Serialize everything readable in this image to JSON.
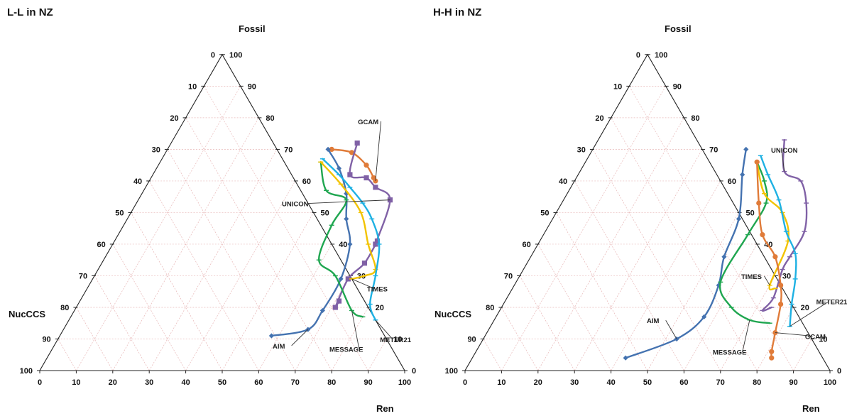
{
  "chart_data": [
    {
      "type": "ternary-line",
      "title": "L-L in NZ",
      "axes": {
        "top": "Fossil",
        "left": "NucCCS",
        "right": "Ren"
      },
      "ticks": [
        0,
        10,
        20,
        30,
        40,
        50,
        60,
        70,
        80,
        90,
        100
      ],
      "grid": true,
      "series": [
        {
          "name": "GCAM",
          "color": "#E07B39",
          "marker": "circle",
          "points": [
            [
              45,
              70,
              70
            ],
            [
              51,
              69,
              69
            ],
            [
              57,
              65,
              65
            ],
            [
              61,
              61,
              61
            ],
            [
              62,
              60,
              60
            ]
          ],
          "label": "GCAM",
          "label_target_index": 4
        },
        {
          "name": "UNICON",
          "color": "#8061A6",
          "marker": "square",
          "points": [
            [
              51,
              72,
              72
            ],
            [
              54,
              62,
              62
            ],
            [
              59,
              61,
              61
            ],
            [
              63,
              58,
              58
            ],
            [
              69,
              54,
              54
            ],
            [
              72,
              40,
              40
            ],
            [
              72,
              41,
              41
            ],
            [
              72,
              34,
              34
            ],
            [
              70,
              29,
              29
            ],
            [
              71,
              20,
              20
            ],
            [
              71,
              22,
              22
            ]
          ],
          "label": "UNICON",
          "label_target_index": 4
        },
        {
          "name": "AIM",
          "color": "#4472B0",
          "marker": "diamond",
          "points": [
            [
              44,
              70,
              70
            ],
            [
              50,
              64,
              64
            ],
            [
              56,
              56,
              56
            ],
            [
              60,
              48,
              48
            ],
            [
              65,
              40,
              40
            ],
            [
              68,
              29,
              29
            ],
            [
              68,
              19,
              19
            ],
            [
              67,
              13,
              13
            ],
            [
              58,
              11,
              11
            ]
          ],
          "label": "AIM",
          "label_target_index": 7
        },
        {
          "name": "MESSAGE",
          "color": "#1FA650",
          "marker": "dash",
          "points": [
            [
              44,
              66,
              66
            ],
            [
              50,
              57,
              57
            ],
            [
              57,
              54,
              54
            ],
            [
              57,
              46,
              46
            ],
            [
              59,
              35,
              35
            ],
            [
              66,
              30,
              30
            ],
            [
              76,
              19,
              19
            ],
            [
              80,
              17,
              17
            ]
          ],
          "label": "MESSAGE",
          "label_target_index": 6
        },
        {
          "name": "TIMES",
          "color": "#F2C300",
          "marker": "dash",
          "points": [
            [
              44,
              66,
              66
            ],
            [
              53,
              59,
              59
            ],
            [
              63,
              50,
              50
            ],
            [
              70,
              40,
              40
            ],
            [
              76,
              32,
              32
            ],
            [
              74,
              30,
              30
            ],
            [
              71,
              29,
              29
            ]
          ],
          "label": "TIMES",
          "label_target_index": 6
        },
        {
          "name": "METER21",
          "color": "#1EB1E3",
          "marker": "dash",
          "points": [
            [
              44,
              67,
              67
            ],
            [
              51,
              62,
              62
            ],
            [
              56,
              58,
              58
            ],
            [
              62,
              53,
              53
            ],
            [
              67,
              48,
              48
            ],
            [
              73,
              40,
              40
            ],
            [
              77,
              30,
              30
            ],
            [
              80,
              21,
              21
            ],
            [
              84,
              16,
              16
            ]
          ],
          "label": "METER21",
          "label_target_index": 8
        }
      ],
      "annotations": [
        {
          "text": "GCAM",
          "x": 51,
          "y": 78,
          "dx": 0,
          "dy": 0
        },
        {
          "text": "UNICON",
          "x": 44,
          "y": 52,
          "dx": 0,
          "dy": 0
        },
        {
          "text": "TIMES",
          "x": 80,
          "y": 25,
          "dx": 0,
          "dy": 0
        },
        {
          "text": "AIM",
          "x": 62,
          "y": 7,
          "dx": 0,
          "dy": 0
        },
        {
          "text": "MESSAGE",
          "x": 81,
          "y": 6,
          "dx": 0,
          "dy": 0
        },
        {
          "text": "METER21",
          "x": 93,
          "y": 9,
          "dx": 0,
          "dy": 0
        }
      ]
    },
    {
      "type": "ternary-line",
      "title": "H-H in NZ",
      "axes": {
        "top": "Fossil",
        "left": "NucCCS",
        "right": "Ren"
      },
      "ticks": [
        0,
        10,
        20,
        30,
        40,
        50,
        60,
        70,
        80,
        90,
        100
      ],
      "grid": true,
      "series": [
        {
          "name": "UNICON",
          "color": "#8061A6",
          "marker": "dash",
          "points": [
            [
              51,
              73,
              73
            ],
            [
              56,
              63,
              63
            ],
            [
              62,
              60,
              60
            ],
            [
              67,
              53,
              53
            ],
            [
              71,
              44,
              44
            ],
            [
              71,
              36,
              36
            ],
            [
              71,
              32,
              32
            ],
            [
              73,
              23,
              23
            ],
            [
              72,
              19,
              19
            ],
            [
              74,
              20,
              20
            ]
          ],
          "label": "UNICON",
          "label_target_index": 1
        },
        {
          "name": "AIM",
          "color": "#4472B0",
          "marker": "diamond",
          "points": [
            [
              42,
              70,
              70
            ],
            [
              45,
              62,
              62
            ],
            [
              51,
              48,
              48
            ],
            [
              53,
              36,
              36
            ],
            [
              56,
              27,
              27
            ],
            [
              57,
              17,
              17
            ],
            [
              53,
              10,
              10
            ],
            [
              42,
              4,
              4
            ]
          ],
          "label": "AIM",
          "label_target_index": 6
        },
        {
          "name": "MESSAGE",
          "color": "#1FA650",
          "marker": "dash",
          "points": [
            [
              47,
              66,
              66
            ],
            [
              52,
              60,
              60
            ],
            [
              56,
              53,
              53
            ],
            [
              56,
              43,
              43
            ],
            [
              56,
              28,
              28
            ],
            [
              63,
              20,
              20
            ],
            [
              70,
              16,
              16
            ],
            [
              76,
              15,
              15
            ]
          ],
          "label": "MESSAGE",
          "label_target_index": 6
        },
        {
          "name": "TIMES",
          "color": "#F2C300",
          "marker": "dash",
          "points": [
            [
              47,
              66,
              66
            ],
            [
              54,
              56,
              56
            ],
            [
              62,
              50,
              50
            ],
            [
              68,
              41,
              41
            ],
            [
              70,
              27,
              27
            ],
            [
              72,
              26,
              26
            ]
          ],
          "label": "TIMES",
          "label_target_index": 4
        },
        {
          "name": "METER21",
          "color": "#1EB1E3",
          "marker": "dash",
          "points": [
            [
              47,
              68,
              68
            ],
            [
              52,
              62,
              62
            ],
            [
              59,
              54,
              54
            ],
            [
              66,
              44,
              44
            ],
            [
              72,
              37,
              37
            ],
            [
              76,
              29,
              29
            ],
            [
              79,
              21,
              21
            ],
            [
              82,
              14,
              14
            ]
          ],
          "label": "METER21",
          "label_target_index": 7
        },
        {
          "name": "GCAM",
          "color": "#E07B39",
          "marker": "circle",
          "points": [
            [
              47,
              66,
              66
            ],
            [
              54,
              53,
              53
            ],
            [
              60,
              43,
              43
            ],
            [
              67,
              36,
              36
            ],
            [
              73,
              27,
              27
            ],
            [
              76,
              21,
              21
            ],
            [
              79,
              12,
              12
            ],
            [
              81,
              6,
              6
            ],
            [
              82,
              4,
              4
            ]
          ],
          "label": "GCAM",
          "label_target_index": 6
        }
      ],
      "annotations": [
        {
          "text": "UNICON",
          "x": 53,
          "y": 69,
          "dx": 0,
          "dy": 0
        },
        {
          "text": "TIMES",
          "x": 64,
          "y": 29,
          "dx": 0,
          "dy": 0
        },
        {
          "text": "AIM",
          "x": 44,
          "y": 15,
          "dx": 0,
          "dy": 0
        },
        {
          "text": "MESSAGE",
          "x": 70,
          "y": 5,
          "dx": 0,
          "dy": 0
        },
        {
          "text": "METER21",
          "x": 90,
          "y": 21,
          "dx": 0,
          "dy": 0
        },
        {
          "text": "GCAM",
          "x": 91,
          "y": 10,
          "dx": 0,
          "dy": 0
        }
      ]
    }
  ]
}
